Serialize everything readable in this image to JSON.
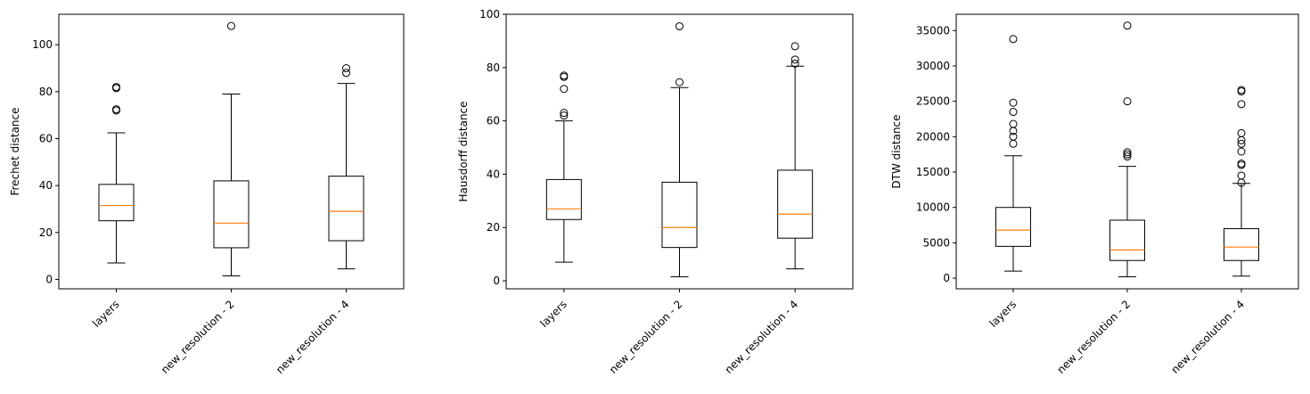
{
  "chart_data": [
    {
      "type": "box",
      "ylabel": "Frechet distance",
      "categories": [
        "layers",
        "new_resolution - 2",
        "new_resolution - 4"
      ],
      "yticks": [
        0,
        20,
        40,
        60,
        80,
        100
      ],
      "ylim": [
        -4,
        113
      ],
      "boxes": [
        {
          "whisker_low": 7,
          "q1": 25,
          "median": 31.5,
          "q3": 40.5,
          "whisker_high": 62.5,
          "outliers": [
            72,
            72.5,
            81.5,
            82
          ]
        },
        {
          "whisker_low": 1.5,
          "q1": 13.5,
          "median": 24,
          "q3": 42,
          "whisker_high": 79,
          "outliers": [
            108
          ]
        },
        {
          "whisker_low": 4.5,
          "q1": 16.5,
          "median": 29,
          "q3": 44,
          "whisker_high": 83.5,
          "outliers": [
            88,
            90
          ]
        }
      ]
    },
    {
      "type": "box",
      "ylabel": "Hausdorff distance",
      "categories": [
        "layers",
        "new_resolution - 2",
        "new_resolution - 4"
      ],
      "yticks": [
        0,
        20,
        40,
        60,
        80,
        100
      ],
      "ylim": [
        -3,
        100
      ],
      "boxes": [
        {
          "whisker_low": 7,
          "q1": 23,
          "median": 27,
          "q3": 38,
          "whisker_high": 60,
          "outliers": [
            62,
            63,
            72,
            76.5,
            77
          ]
        },
        {
          "whisker_low": 1.5,
          "q1": 12.5,
          "median": 20,
          "q3": 37,
          "whisker_high": 72.5,
          "outliers": [
            74.5,
            95.5
          ]
        },
        {
          "whisker_low": 4.5,
          "q1": 16,
          "median": 25,
          "q3": 41.5,
          "whisker_high": 80.5,
          "outliers": [
            81.5,
            83,
            88
          ]
        }
      ]
    },
    {
      "type": "box",
      "ylabel": "DTW distance",
      "categories": [
        "layers",
        "new_resolution - 2",
        "new_resolution - 4"
      ],
      "yticks": [
        0,
        5000,
        10000,
        15000,
        20000,
        25000,
        30000,
        35000
      ],
      "ylim": [
        -1500,
        37300
      ],
      "boxes": [
        {
          "whisker_low": 1000,
          "q1": 4500,
          "median": 6800,
          "q3": 10000,
          "whisker_high": 17300,
          "outliers": [
            19000,
            20000,
            20800,
            21800,
            23500,
            24800,
            33800
          ]
        },
        {
          "whisker_low": 200,
          "q1": 2500,
          "median": 4000,
          "q3": 8200,
          "whisker_high": 15800,
          "outliers": [
            17200,
            17500,
            17800,
            25000,
            35700
          ]
        },
        {
          "whisker_low": 300,
          "q1": 2500,
          "median": 4400,
          "q3": 7000,
          "whisker_high": 13400,
          "outliers": [
            13500,
            14500,
            16000,
            16200,
            17900,
            19000,
            19500,
            20500,
            24600,
            26400,
            26600
          ]
        }
      ]
    }
  ]
}
